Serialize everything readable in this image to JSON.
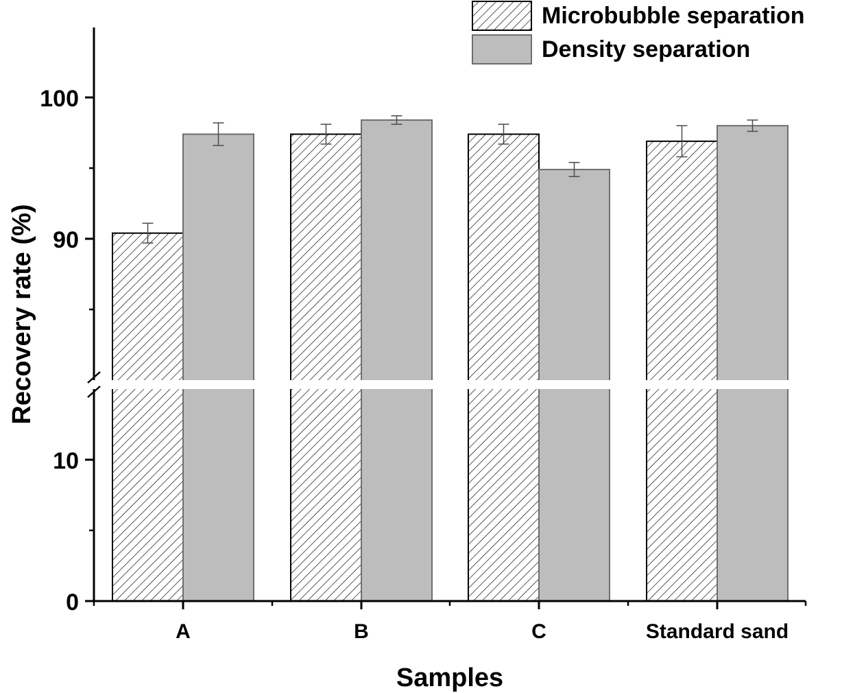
{
  "chart_data": {
    "type": "bar",
    "title": "",
    "xlabel": "Samples",
    "ylabel": "Recovery rate (%)",
    "categories": [
      "A",
      "B",
      "C",
      "Standard sand"
    ],
    "series": [
      {
        "name": "Microbubble separation",
        "pattern": "hatch",
        "values": [
          90.4,
          97.4,
          97.4,
          96.9
        ],
        "errors": [
          0.7,
          0.7,
          0.7,
          1.1
        ]
      },
      {
        "name": "Density separation",
        "pattern": "solid",
        "values": [
          97.4,
          98.4,
          94.9,
          98.0
        ],
        "errors": [
          0.8,
          0.3,
          0.5,
          0.4
        ]
      }
    ],
    "y_break": {
      "from": 15,
      "to": 80
    },
    "ylim_lower": [
      0,
      15
    ],
    "ylim_upper": [
      80,
      105
    ],
    "yticks_major": [
      0,
      10,
      90,
      100
    ],
    "yticks_minor": [
      5,
      85,
      95
    ],
    "grid": false,
    "legend_position": "top-right",
    "colors": {
      "hatch_fill": "#ffffff",
      "hatch_line": "#000000",
      "solid_fill": "#bdbdbd",
      "solid_edge": "#6e6e6e",
      "axis": "#000000",
      "error_bar": "#4a4a4a"
    }
  }
}
